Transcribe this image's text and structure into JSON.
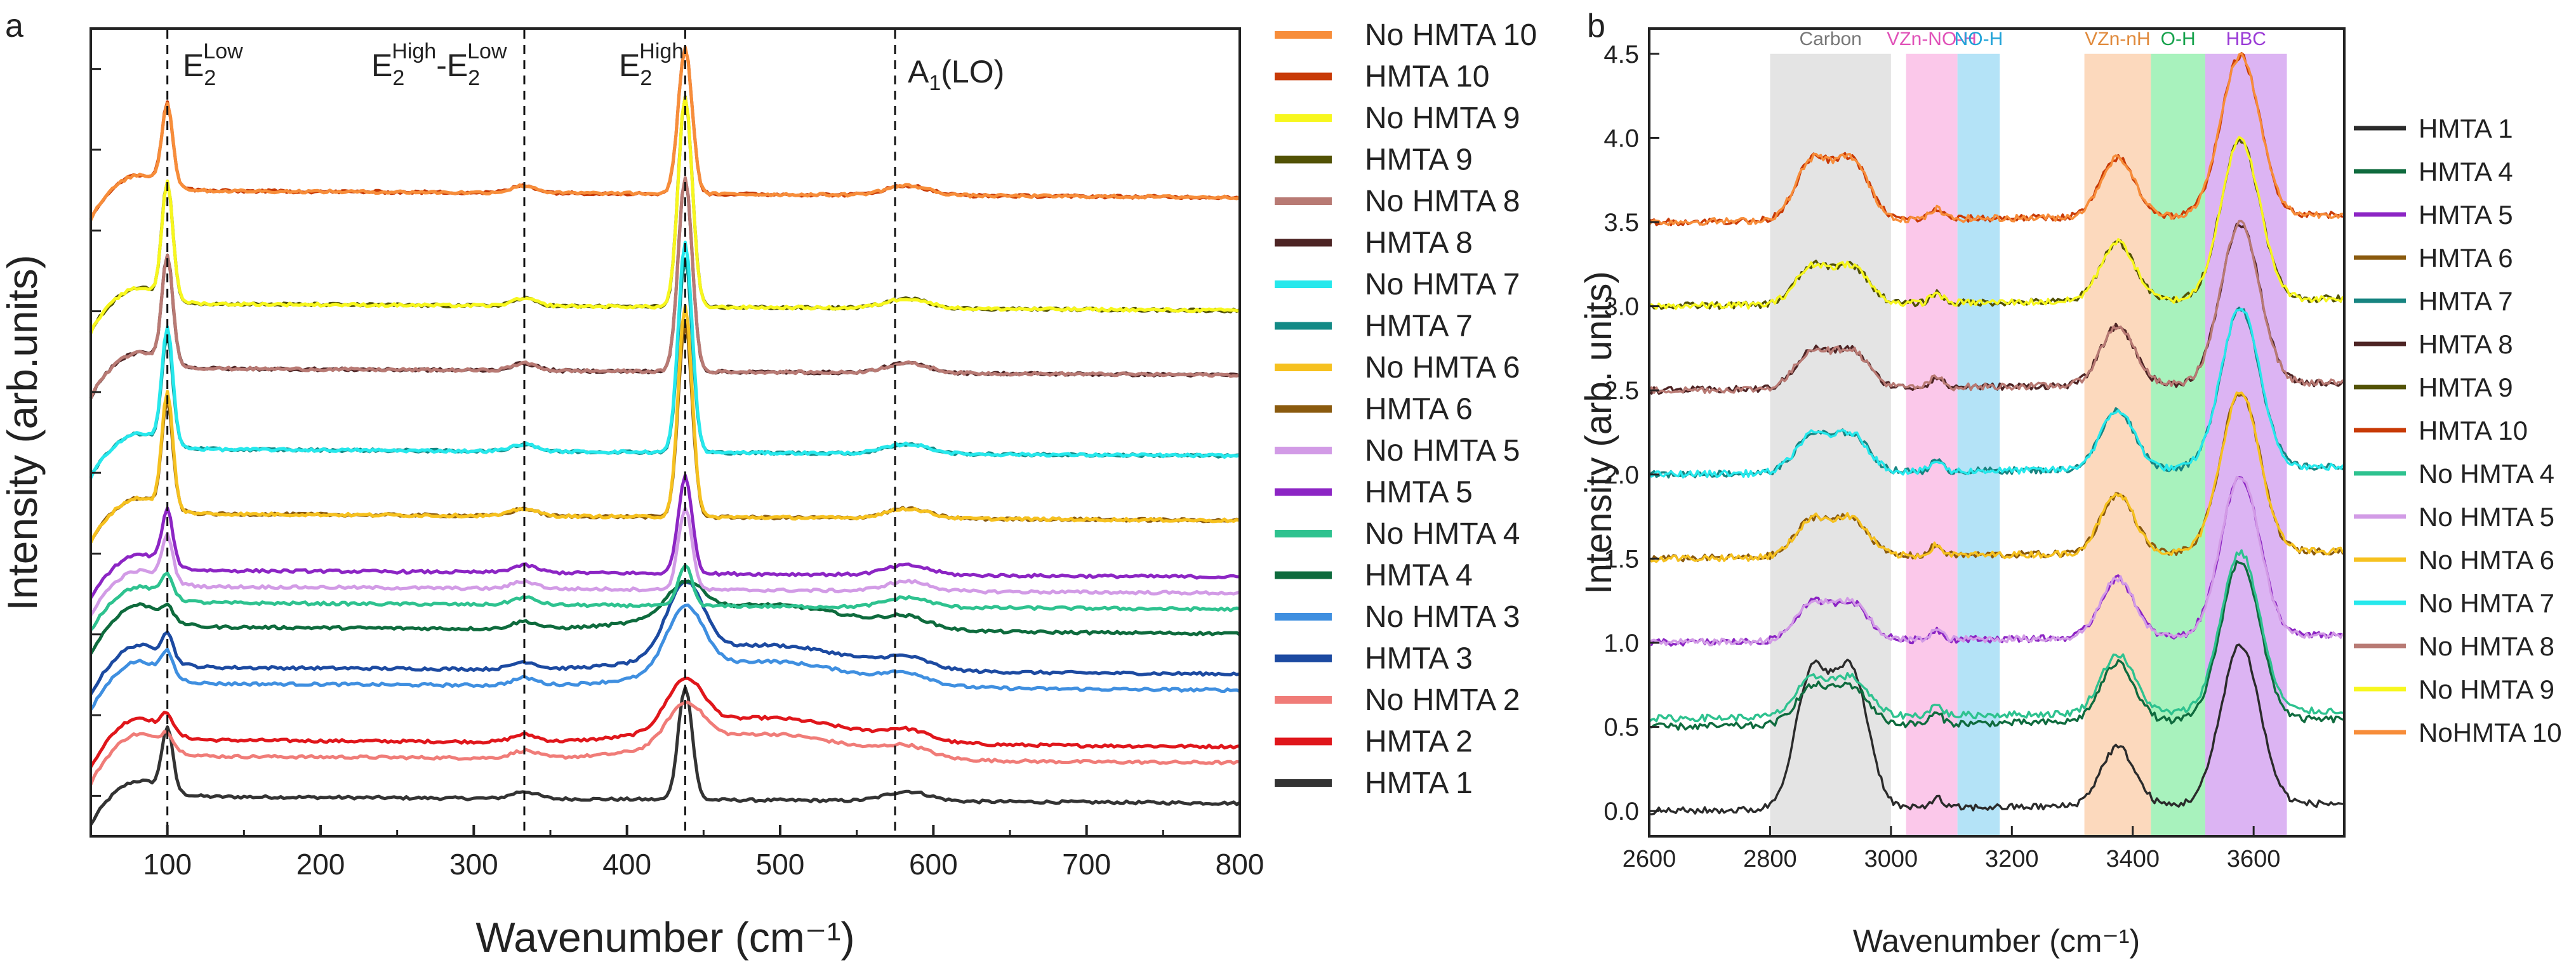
{
  "chart_data": [
    {
      "panel": "a",
      "type": "line",
      "xlabel": "Wavenumber (cm⁻¹)",
      "ylabel": "Intensity (arb.units)",
      "xlim": [
        50,
        800
      ],
      "ylim": [
        0,
        100
      ],
      "xticks": [
        100,
        200,
        300,
        400,
        500,
        600,
        700,
        800
      ],
      "y_ticks_shown_without_labels": true,
      "peak_lines": [
        {
          "x": 100,
          "label": "E₂ Low"
        },
        {
          "x": 333,
          "label": "E₂ High - E₂ Low"
        },
        {
          "x": 438,
          "label": "E₂ High"
        },
        {
          "x": 575,
          "label": "A₁(LO)"
        }
      ],
      "legend_position": "right",
      "series": [
        {
          "name": "HMTA 1",
          "color": "#333333",
          "offset": 5,
          "peak": 14,
          "shape": "sharp"
        },
        {
          "name": "HMTA 2",
          "color": "#e0161b",
          "offset": 12,
          "peak": 6,
          "shape": "broad"
        },
        {
          "name": "No HMTA 2",
          "color": "#f07c78",
          "offset": 10,
          "peak": 5,
          "shape": "broad"
        },
        {
          "name": "HMTA 3",
          "color": "#1c4aa1",
          "offset": 21,
          "peak": 9,
          "shape": "broad"
        },
        {
          "name": "No HMTA 3",
          "color": "#3f8fe0",
          "offset": 19,
          "peak": 8,
          "shape": "broad"
        },
        {
          "name": "HMTA 4",
          "color": "#0e6b3d",
          "offset": 26,
          "peak": 4,
          "shape": "broad"
        },
        {
          "name": "No HMTA 4",
          "color": "#2ec28f",
          "offset": 29,
          "peak": 5,
          "shape": "sharp"
        },
        {
          "name": "HMTA 5",
          "color": "#8c25c4",
          "offset": 33,
          "peak": 12,
          "shape": "sharp"
        },
        {
          "name": "No HMTA 5",
          "color": "#d29be6",
          "offset": 31,
          "peak": 10,
          "shape": "sharp"
        },
        {
          "name": "HMTA 6",
          "color": "#8a5a0e",
          "offset": 40,
          "peak": 24,
          "shape": "sharp"
        },
        {
          "name": "No HMTA 6",
          "color": "#f6c11f",
          "offset": 40,
          "peak": 26,
          "shape": "sharp"
        },
        {
          "name": "HMTA 7",
          "color": "#138a86",
          "offset": 48,
          "peak": 24,
          "shape": "sharp"
        },
        {
          "name": "No HMTA 7",
          "color": "#26e8ec",
          "offset": 48,
          "peak": 26,
          "shape": "sharp"
        },
        {
          "name": "HMTA 8",
          "color": "#4d2424",
          "offset": 58,
          "peak": 24,
          "shape": "sharp"
        },
        {
          "name": "No HMTA  8",
          "color": "#b87a74",
          "offset": 58,
          "peak": 24,
          "shape": "sharp"
        },
        {
          "name": "HMTA 9",
          "color": "#525205",
          "offset": 66,
          "peak": 26,
          "shape": "sharp"
        },
        {
          "name": "No HMTA 9",
          "color": "#f7f71e",
          "offset": 66,
          "peak": 26,
          "shape": "sharp"
        },
        {
          "name": "HMTA 10",
          "color": "#c83a06",
          "offset": 80,
          "peak": 18,
          "shape": "sharp"
        },
        {
          "name": "No HMTA 10",
          "color": "#f78d3a",
          "offset": 80,
          "peak": 18,
          "shape": "sharp"
        }
      ],
      "legend_order": [
        "No HMTA 10",
        "HMTA 10",
        "No HMTA 9",
        "HMTA 9",
        "No HMTA  8",
        "HMTA 8",
        "No HMTA 7",
        "HMTA 7",
        "No HMTA 6",
        "HMTA 6",
        "No HMTA 5",
        "HMTA 5",
        "No HMTA 4",
        "HMTA 4",
        "No HMTA 3",
        "HMTA 3",
        "No HMTA 2",
        "HMTA 2",
        "HMTA 1"
      ]
    },
    {
      "panel": "b",
      "type": "line",
      "xlabel": "Wavenumber (cm⁻¹)",
      "ylabel": "Intensity (arb. units)",
      "xlim": [
        2600,
        3750
      ],
      "ylim": [
        -0.15,
        4.65
      ],
      "xticks": [
        2600,
        2800,
        3000,
        3200,
        3400,
        3600
      ],
      "yticks": [
        0.0,
        0.5,
        1.0,
        1.5,
        2.0,
        2.5,
        3.0,
        3.5,
        4.0,
        4.5
      ],
      "bands": [
        {
          "label": "Carbon",
          "x0": 2800,
          "x1": 3000,
          "color": "#e4e4e4",
          "label_color": "#777777"
        },
        {
          "label": "VZn-NO-H",
          "x0": 3025,
          "x1": 3110,
          "color": "#fbc8ea",
          "label_color": "#e052b8"
        },
        {
          "label": "NO-H",
          "x0": 3110,
          "x1": 3180,
          "color": "#b4e3f7",
          "label_color": "#21a3d8"
        },
        {
          "label": "VZn-nH",
          "x0": 3320,
          "x1": 3430,
          "color": "#fcd9bd",
          "label_color": "#e08a3c"
        },
        {
          "label": "O-H",
          "x0": 3430,
          "x1": 3520,
          "color": "#a8f2bd",
          "label_color": "#16a24c"
        },
        {
          "label": "HBC",
          "x0": 3520,
          "x1": 3655,
          "color": "#dcb4f3",
          "label_color": "#9a3ad6"
        }
      ],
      "legend_position": "right",
      "series": [
        {
          "name": "HMTA 1",
          "color": "#2b2b2b",
          "offset": 0.0
        },
        {
          "name": "HMTA 4",
          "color": "#0f6b3e",
          "offset": 0.5
        },
        {
          "name": "HMTA 5",
          "color": "#8c25c4",
          "offset": 1.0
        },
        {
          "name": "HMTA 6",
          "color": "#8a5a0e",
          "offset": 1.5
        },
        {
          "name": "HMTA 7",
          "color": "#178481",
          "offset": 2.0
        },
        {
          "name": "HMTA 8",
          "color": "#4d2424",
          "offset": 2.5
        },
        {
          "name": "HMTA 9",
          "color": "#525205",
          "offset": 3.0
        },
        {
          "name": "HMTA 10",
          "color": "#c83a06",
          "offset": 3.5
        },
        {
          "name": "No HMTA 4",
          "color": "#2ec28f",
          "offset": 0.55
        },
        {
          "name": "No HMTA 5",
          "color": "#d29be6",
          "offset": 1.0
        },
        {
          "name": "No HMTA 6",
          "color": "#f6c11f",
          "offset": 1.5
        },
        {
          "name": "No HMTA 7",
          "color": "#26e8ec",
          "offset": 2.0
        },
        {
          "name": "No HMTA 8",
          "color": "#b87a74",
          "offset": 2.5
        },
        {
          "name": "No HMTA 9",
          "color": "#f7f71e",
          "offset": 3.0
        },
        {
          "name": "NoHMTA 10",
          "color": "#f78d3a",
          "offset": 3.5
        }
      ]
    }
  ],
  "labels": {
    "panel_a": "a",
    "panel_b": "b",
    "a_ann_e2low": "E2Low",
    "a_ann_diff": "E2High-E2Low",
    "a_ann_e2high": "E2High",
    "a_ann_a1lo": "A1(LO)"
  }
}
